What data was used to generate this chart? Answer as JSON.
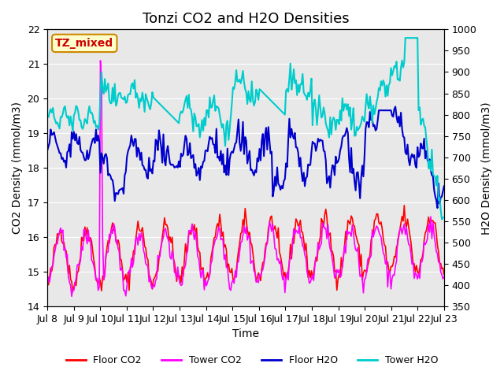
{
  "title": "Tonzi CO2 and H2O Densities",
  "xlabel": "Time",
  "ylabel_left": "CO2 Density (mmol/m3)",
  "ylabel_right": "H2O Density (mmol/m3)",
  "ylim_left": [
    14.0,
    22.0
  ],
  "ylim_right": [
    350,
    1000
  ],
  "xtick_labels": [
    "Jul 8",
    "Jul 9",
    "Jul 10",
    "Jul 11",
    "Jul 12",
    "Jul 13",
    "Jul 14",
    "Jul 15",
    "Jul 16",
    "Jul 17",
    "Jul 18",
    "Jul 19",
    "Jul 20",
    "Jul 21",
    "Jul 22",
    "Jul 23"
  ],
  "annotation_text": "TZ_mixed",
  "annotation_color": "#cc0000",
  "annotation_bg": "#ffffcc",
  "annotation_edge": "#cc8800",
  "colors": {
    "floor_co2": "#ff0000",
    "tower_co2": "#ff00ff",
    "floor_h2o": "#0000cc",
    "tower_h2o": "#00cccc"
  },
  "legend_labels": [
    "Floor CO2",
    "Tower CO2",
    "Floor H2O",
    "Tower H2O"
  ],
  "background_color": "#e8e8e8",
  "figure_bg": "#ffffff",
  "title_fontsize": 13,
  "axis_fontsize": 10,
  "tick_fontsize": 9,
  "legend_fontsize": 9,
  "n_points": 360
}
